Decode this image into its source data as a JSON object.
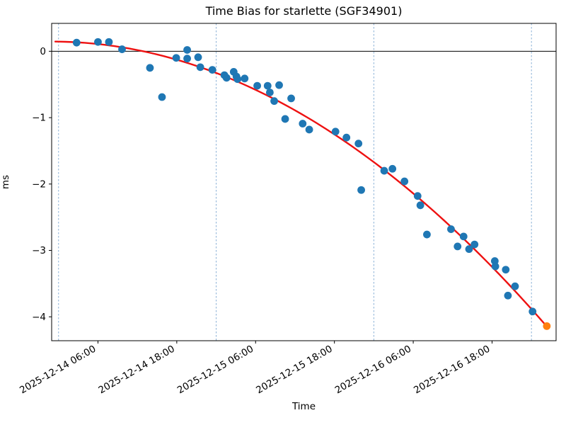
{
  "figure": {
    "title": "Time Bias for starlette (SGF34901)",
    "xlabel": "Time",
    "ylabel": "ms"
  },
  "chart_data": {
    "type": "scatter",
    "title": "Time Bias for starlette (SGF34901)",
    "xlabel": "Time",
    "ylabel": "ms",
    "x_base_date": "2025-12-14 00:00",
    "x_tick_hours": [
      6,
      18,
      30,
      42,
      54,
      66
    ],
    "x_tick_labels": [
      "2025-12-14 06:00",
      "2025-12-14 18:00",
      "2025-12-15 06:00",
      "2025-12-15 18:00",
      "2025-12-16 06:00",
      "2025-12-16 18:00"
    ],
    "y_tick_values": [
      0,
      -1,
      -2,
      -3,
      -4
    ],
    "y_tick_labels": [
      "0",
      "−1",
      "−2",
      "−3",
      "−4"
    ],
    "x_range_hours": [
      -1.05,
      75.75
    ],
    "y_range_ms": [
      -4.36,
      0.42
    ],
    "day_boundary_hours": [
      0,
      24,
      48,
      72
    ],
    "zero_line_ms": 0,
    "grid": false,
    "legend": "none",
    "colors": {
      "scatter": "#1f77b4",
      "latest": "#ff7f0e",
      "fit": "#ee1111",
      "day_line": "#8ab0d6",
      "zero_line": "#000000",
      "spine": "#000000"
    },
    "series": [
      {
        "name": "time-bias-observations",
        "marker": "circle",
        "color_key": "scatter",
        "points": [
          [
            "2025-12-14 02:45",
            0.13
          ],
          [
            "2025-12-14 06:00",
            0.14
          ],
          [
            "2025-12-14 07:40",
            0.14
          ],
          [
            "2025-12-14 09:40",
            0.03
          ],
          [
            "2025-12-14 13:55",
            -0.25
          ],
          [
            "2025-12-14 15:45",
            -0.69
          ],
          [
            "2025-12-14 17:55",
            -0.1
          ],
          [
            "2025-12-14 19:35",
            0.02
          ],
          [
            "2025-12-14 19:35",
            -0.11
          ],
          [
            "2025-12-14 21:15",
            -0.09
          ],
          [
            "2025-12-14 21:35",
            -0.24
          ],
          [
            "2025-12-14 23:25",
            -0.28
          ],
          [
            "2025-12-15 01:15",
            -0.36
          ],
          [
            "2025-12-15 01:35",
            -0.4
          ],
          [
            "2025-12-15 02:40",
            -0.31
          ],
          [
            "2025-12-15 03:05",
            -0.38
          ],
          [
            "2025-12-15 03:15",
            -0.42
          ],
          [
            "2025-12-15 04:20",
            -0.41
          ],
          [
            "2025-12-15 06:15",
            -0.52
          ],
          [
            "2025-12-15 07:50",
            -0.52
          ],
          [
            "2025-12-15 08:10",
            -0.62
          ],
          [
            "2025-12-15 08:50",
            -0.75
          ],
          [
            "2025-12-15 09:35",
            -0.51
          ],
          [
            "2025-12-15 10:30",
            -1.02
          ],
          [
            "2025-12-15 11:25",
            -0.71
          ],
          [
            "2025-12-15 13:10",
            -1.09
          ],
          [
            "2025-12-15 14:10",
            -1.18
          ],
          [
            "2025-12-15 18:10",
            -1.21
          ],
          [
            "2025-12-15 19:50",
            -1.3
          ],
          [
            "2025-12-15 21:40",
            -1.39
          ],
          [
            "2025-12-15 22:05",
            -2.09
          ],
          [
            "2025-12-16 01:35",
            -1.8
          ],
          [
            "2025-12-16 02:50",
            -1.77
          ],
          [
            "2025-12-16 04:40",
            -1.96
          ],
          [
            "2025-12-16 06:40",
            -2.18
          ],
          [
            "2025-12-16 07:05",
            -2.32
          ],
          [
            "2025-12-16 08:05",
            -2.76
          ],
          [
            "2025-12-16 11:45",
            -2.68
          ],
          [
            "2025-12-16 12:45",
            -2.94
          ],
          [
            "2025-12-16 13:40",
            -2.79
          ],
          [
            "2025-12-16 14:30",
            -2.98
          ],
          [
            "2025-12-16 15:20",
            -2.91
          ],
          [
            "2025-12-16 18:25",
            -3.16
          ],
          [
            "2025-12-16 18:30",
            -3.24
          ],
          [
            "2025-12-16 20:05",
            -3.29
          ],
          [
            "2025-12-16 20:25",
            -3.68
          ],
          [
            "2025-12-16 21:30",
            -3.54
          ],
          [
            "2025-12-17 00:10",
            -3.92
          ]
        ]
      },
      {
        "name": "latest-observation",
        "marker": "circle",
        "color_key": "latest",
        "points": [
          [
            "2025-12-17 02:20",
            -4.14
          ]
        ]
      }
    ],
    "fit_curve": {
      "name": "polynomial-fit",
      "color_key": "fit",
      "coeffs_ms_vs_hours": [
        0.145,
        -0.00152,
        -0.000756
      ],
      "h_start": -0.5,
      "h_end": 74.31
    }
  }
}
